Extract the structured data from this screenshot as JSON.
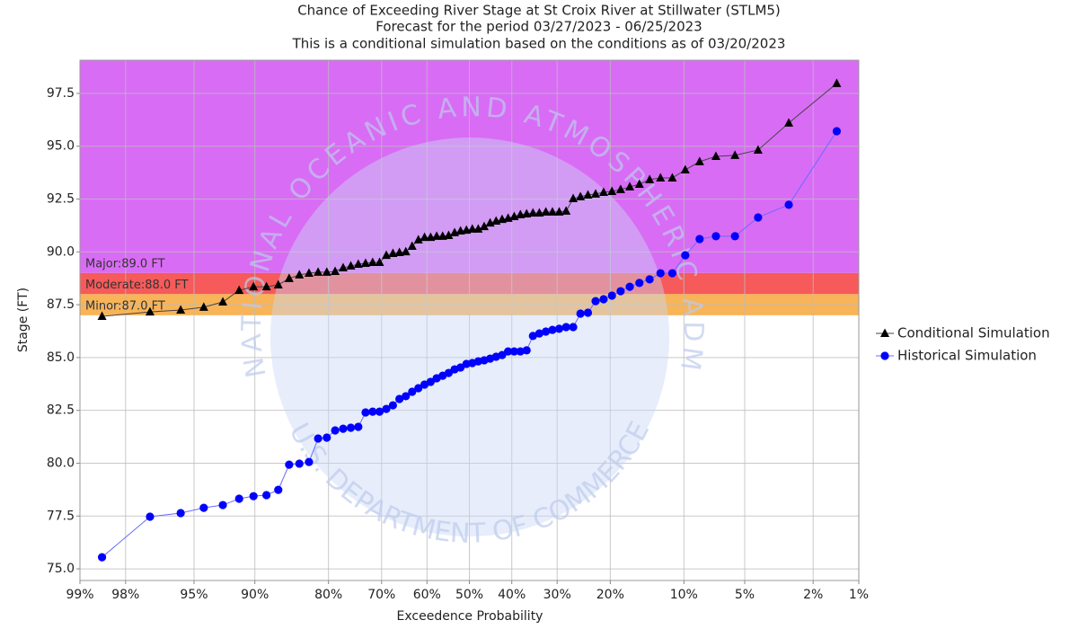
{
  "chart_data": {
    "type": "probability-line",
    "title": [
      "Chance of Exceeding River Stage at St Croix River at Stillwater (STLM5)",
      "Forecast for the period 03/27/2023 - 06/25/2023",
      "This is a conditional simulation based on the conditions as of 03/20/2023"
    ],
    "x_label": "Exceedence Probability",
    "y_label": "Stage (FT)",
    "xscale": "normal-probability",
    "xlim": [
      99,
      1
    ],
    "xticks": [
      {
        "value": 99,
        "label": "99%"
      },
      {
        "value": 98,
        "label": "98%"
      },
      {
        "value": 95,
        "label": "95%"
      },
      {
        "value": 90,
        "label": "90%"
      },
      {
        "value": 80,
        "label": "80%"
      },
      {
        "value": 70,
        "label": "70%"
      },
      {
        "value": 60,
        "label": "60%"
      },
      {
        "value": 50,
        "label": "50%"
      },
      {
        "value": 40,
        "label": "40%"
      },
      {
        "value": 30,
        "label": "30%"
      },
      {
        "value": 20,
        "label": "20%"
      },
      {
        "value": 10,
        "label": "10%"
      },
      {
        "value": 5,
        "label": "5%"
      },
      {
        "value": 2,
        "label": "2%"
      },
      {
        "value": 1,
        "label": "1%"
      }
    ],
    "ylim": [
      74.45,
      99.07
    ],
    "yticks": [
      {
        "value": 75,
        "label": "75.0"
      },
      77.5,
      {
        "value": 80,
        "label": "80.0"
      },
      82.5,
      {
        "value": 85,
        "label": "85.0"
      },
      87.5,
      {
        "value": 90,
        "label": "90.0"
      },
      92.5,
      {
        "value": 95,
        "label": "95.0"
      },
      97.5
    ],
    "grid": true,
    "legend": "right",
    "flood_categories": [
      {
        "value": 89,
        "label": "Major:89.0 FT",
        "color": "#d96cf5"
      },
      {
        "value": 88,
        "label": "Moderate:88.0 FT",
        "color": "#f65a5a"
      },
      {
        "value": 87,
        "label": "Minor:87.0 FT",
        "color": "#f8b458"
      }
    ],
    "watermark": [
      "NATIONAL OCEANIC AND ATMOSPHERIC ADMINISTRATION",
      "U.S. DEPARTMENT OF COMMERCE"
    ],
    "x": [
      98.59,
      97.18,
      95.77,
      94.37,
      92.96,
      91.55,
      90.14,
      88.73,
      87.32,
      85.92,
      84.51,
      83.1,
      81.69,
      80.28,
      78.87,
      77.46,
      76.06,
      74.65,
      73.24,
      71.83,
      70.42,
      69.01,
      67.61,
      66.2,
      64.79,
      63.38,
      61.97,
      60.56,
      59.15,
      57.75,
      56.34,
      54.93,
      53.52,
      52.11,
      50.7,
      49.3,
      47.89,
      46.48,
      45.07,
      43.66,
      42.25,
      40.85,
      39.44,
      38.03,
      36.62,
      35.21,
      33.8,
      32.39,
      30.99,
      29.58,
      28.17,
      26.76,
      25.35,
      23.94,
      22.54,
      21.13,
      19.72,
      18.31,
      16.9,
      15.49,
      14.08,
      12.68,
      11.27,
      9.86,
      8.45,
      7.04,
      5.63,
      4.23,
      2.82,
      1.41
    ],
    "series": [
      {
        "name": "Conditional Simulation",
        "color": "#000000",
        "line_color": "#444444",
        "marker": "triangle",
        "values": [
          86.95,
          87.16,
          87.25,
          87.38,
          87.63,
          88.18,
          88.35,
          88.35,
          88.44,
          88.74,
          88.91,
          88.99,
          89.04,
          89.04,
          89.08,
          89.25,
          89.33,
          89.42,
          89.46,
          89.5,
          89.5,
          89.84,
          89.93,
          89.97,
          90.01,
          90.27,
          90.57,
          90.69,
          90.69,
          90.74,
          90.74,
          90.78,
          90.91,
          90.99,
          91.03,
          91.08,
          91.08,
          91.2,
          91.37,
          91.46,
          91.54,
          91.59,
          91.67,
          91.76,
          91.8,
          91.84,
          91.84,
          91.89,
          91.89,
          91.89,
          91.93,
          92.52,
          92.61,
          92.69,
          92.74,
          92.82,
          92.86,
          92.95,
          93.08,
          93.2,
          93.42,
          93.5,
          93.5,
          93.88,
          94.27,
          94.52,
          94.57,
          94.82,
          96.1,
          97.97
        ]
      },
      {
        "name": "Historical Simulation",
        "color": "#0000ff",
        "line_color": "#6a6aff",
        "marker": "circle",
        "values": [
          75.55,
          77.47,
          77.64,
          77.89,
          78.02,
          78.32,
          78.44,
          78.49,
          78.74,
          79.93,
          79.98,
          80.06,
          81.17,
          81.21,
          81.55,
          81.63,
          81.68,
          81.72,
          82.4,
          82.44,
          82.44,
          82.57,
          82.74,
          83.04,
          83.17,
          83.38,
          83.55,
          83.72,
          83.85,
          84.02,
          84.14,
          84.27,
          84.44,
          84.53,
          84.7,
          84.74,
          84.82,
          84.87,
          84.95,
          85.04,
          85.12,
          85.29,
          85.29,
          85.29,
          85.34,
          86.02,
          86.14,
          86.23,
          86.31,
          86.36,
          86.44,
          86.44,
          87.08,
          87.12,
          87.67,
          87.76,
          87.93,
          88.14,
          88.35,
          88.53,
          88.7,
          88.99,
          88.99,
          89.84,
          90.61,
          90.74,
          90.74,
          91.63,
          92.23,
          95.71
        ]
      }
    ]
  }
}
